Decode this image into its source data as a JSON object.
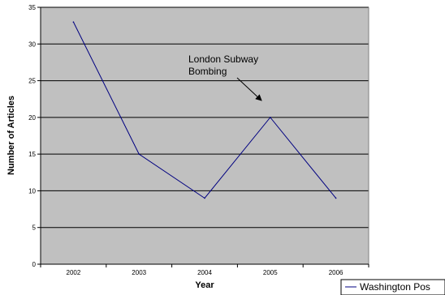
{
  "chart_data": {
    "type": "line",
    "title": "",
    "xlabel": "Year",
    "ylabel": "Number of Articles",
    "categories": [
      "2002",
      "2003",
      "2004",
      "2005",
      "2006"
    ],
    "ylim": [
      0,
      35
    ],
    "yticks": [
      0,
      5,
      10,
      15,
      20,
      25,
      30,
      35
    ],
    "grid": true,
    "plot_background": "#c0c0c0",
    "series": [
      {
        "name": "Washington Pos",
        "values": [
          33,
          15,
          9,
          20,
          9
        ],
        "color": "#000080"
      }
    ],
    "annotations": [
      {
        "text_lines": [
          "London Subway",
          "Bombing"
        ],
        "points_to": {
          "category": "2005",
          "value": 20
        }
      }
    ],
    "legend": {
      "position": "bottom-right",
      "entries": [
        "Washington Pos"
      ]
    }
  }
}
